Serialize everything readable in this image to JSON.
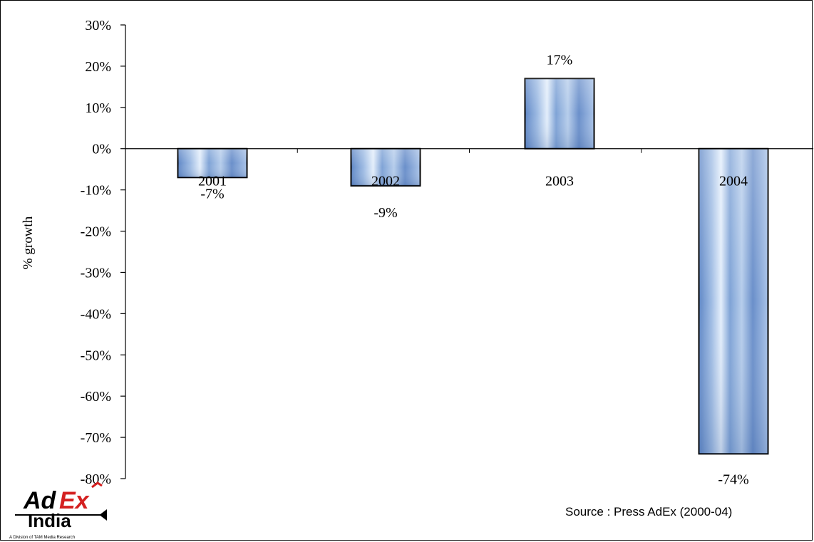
{
  "chart_data": {
    "type": "bar",
    "categories": [
      "2001",
      "2002",
      "2003",
      "2004"
    ],
    "values": [
      -7,
      -9,
      17,
      -74
    ],
    "data_labels": [
      "-7%",
      "-9%",
      "17%",
      "-74%"
    ],
    "ylabel": "% growth",
    "ylim": [
      -80,
      30
    ],
    "yticks": [
      30,
      20,
      10,
      0,
      -10,
      -20,
      -30,
      -40,
      -50,
      -60,
      -70,
      -80
    ],
    "ytick_labels": [
      "30%",
      "20%",
      "10%",
      "0%",
      "-10%",
      "-20%",
      "-30%",
      "-40%",
      "-50%",
      "-60%",
      "-70%",
      "-80%"
    ],
    "grid": false,
    "colors": {
      "bar_light": "#c9dcf2",
      "bar_mid": "#8fb0dc",
      "bar_dark": "#4f7cc0",
      "bar_edge": "#000000"
    }
  },
  "source": "Source : Press AdEx (2000-04)",
  "logo": {
    "part1": "Ad",
    "part2": "Ex",
    "part3": "India",
    "tagline": "A Division of TAM Media Research"
  }
}
